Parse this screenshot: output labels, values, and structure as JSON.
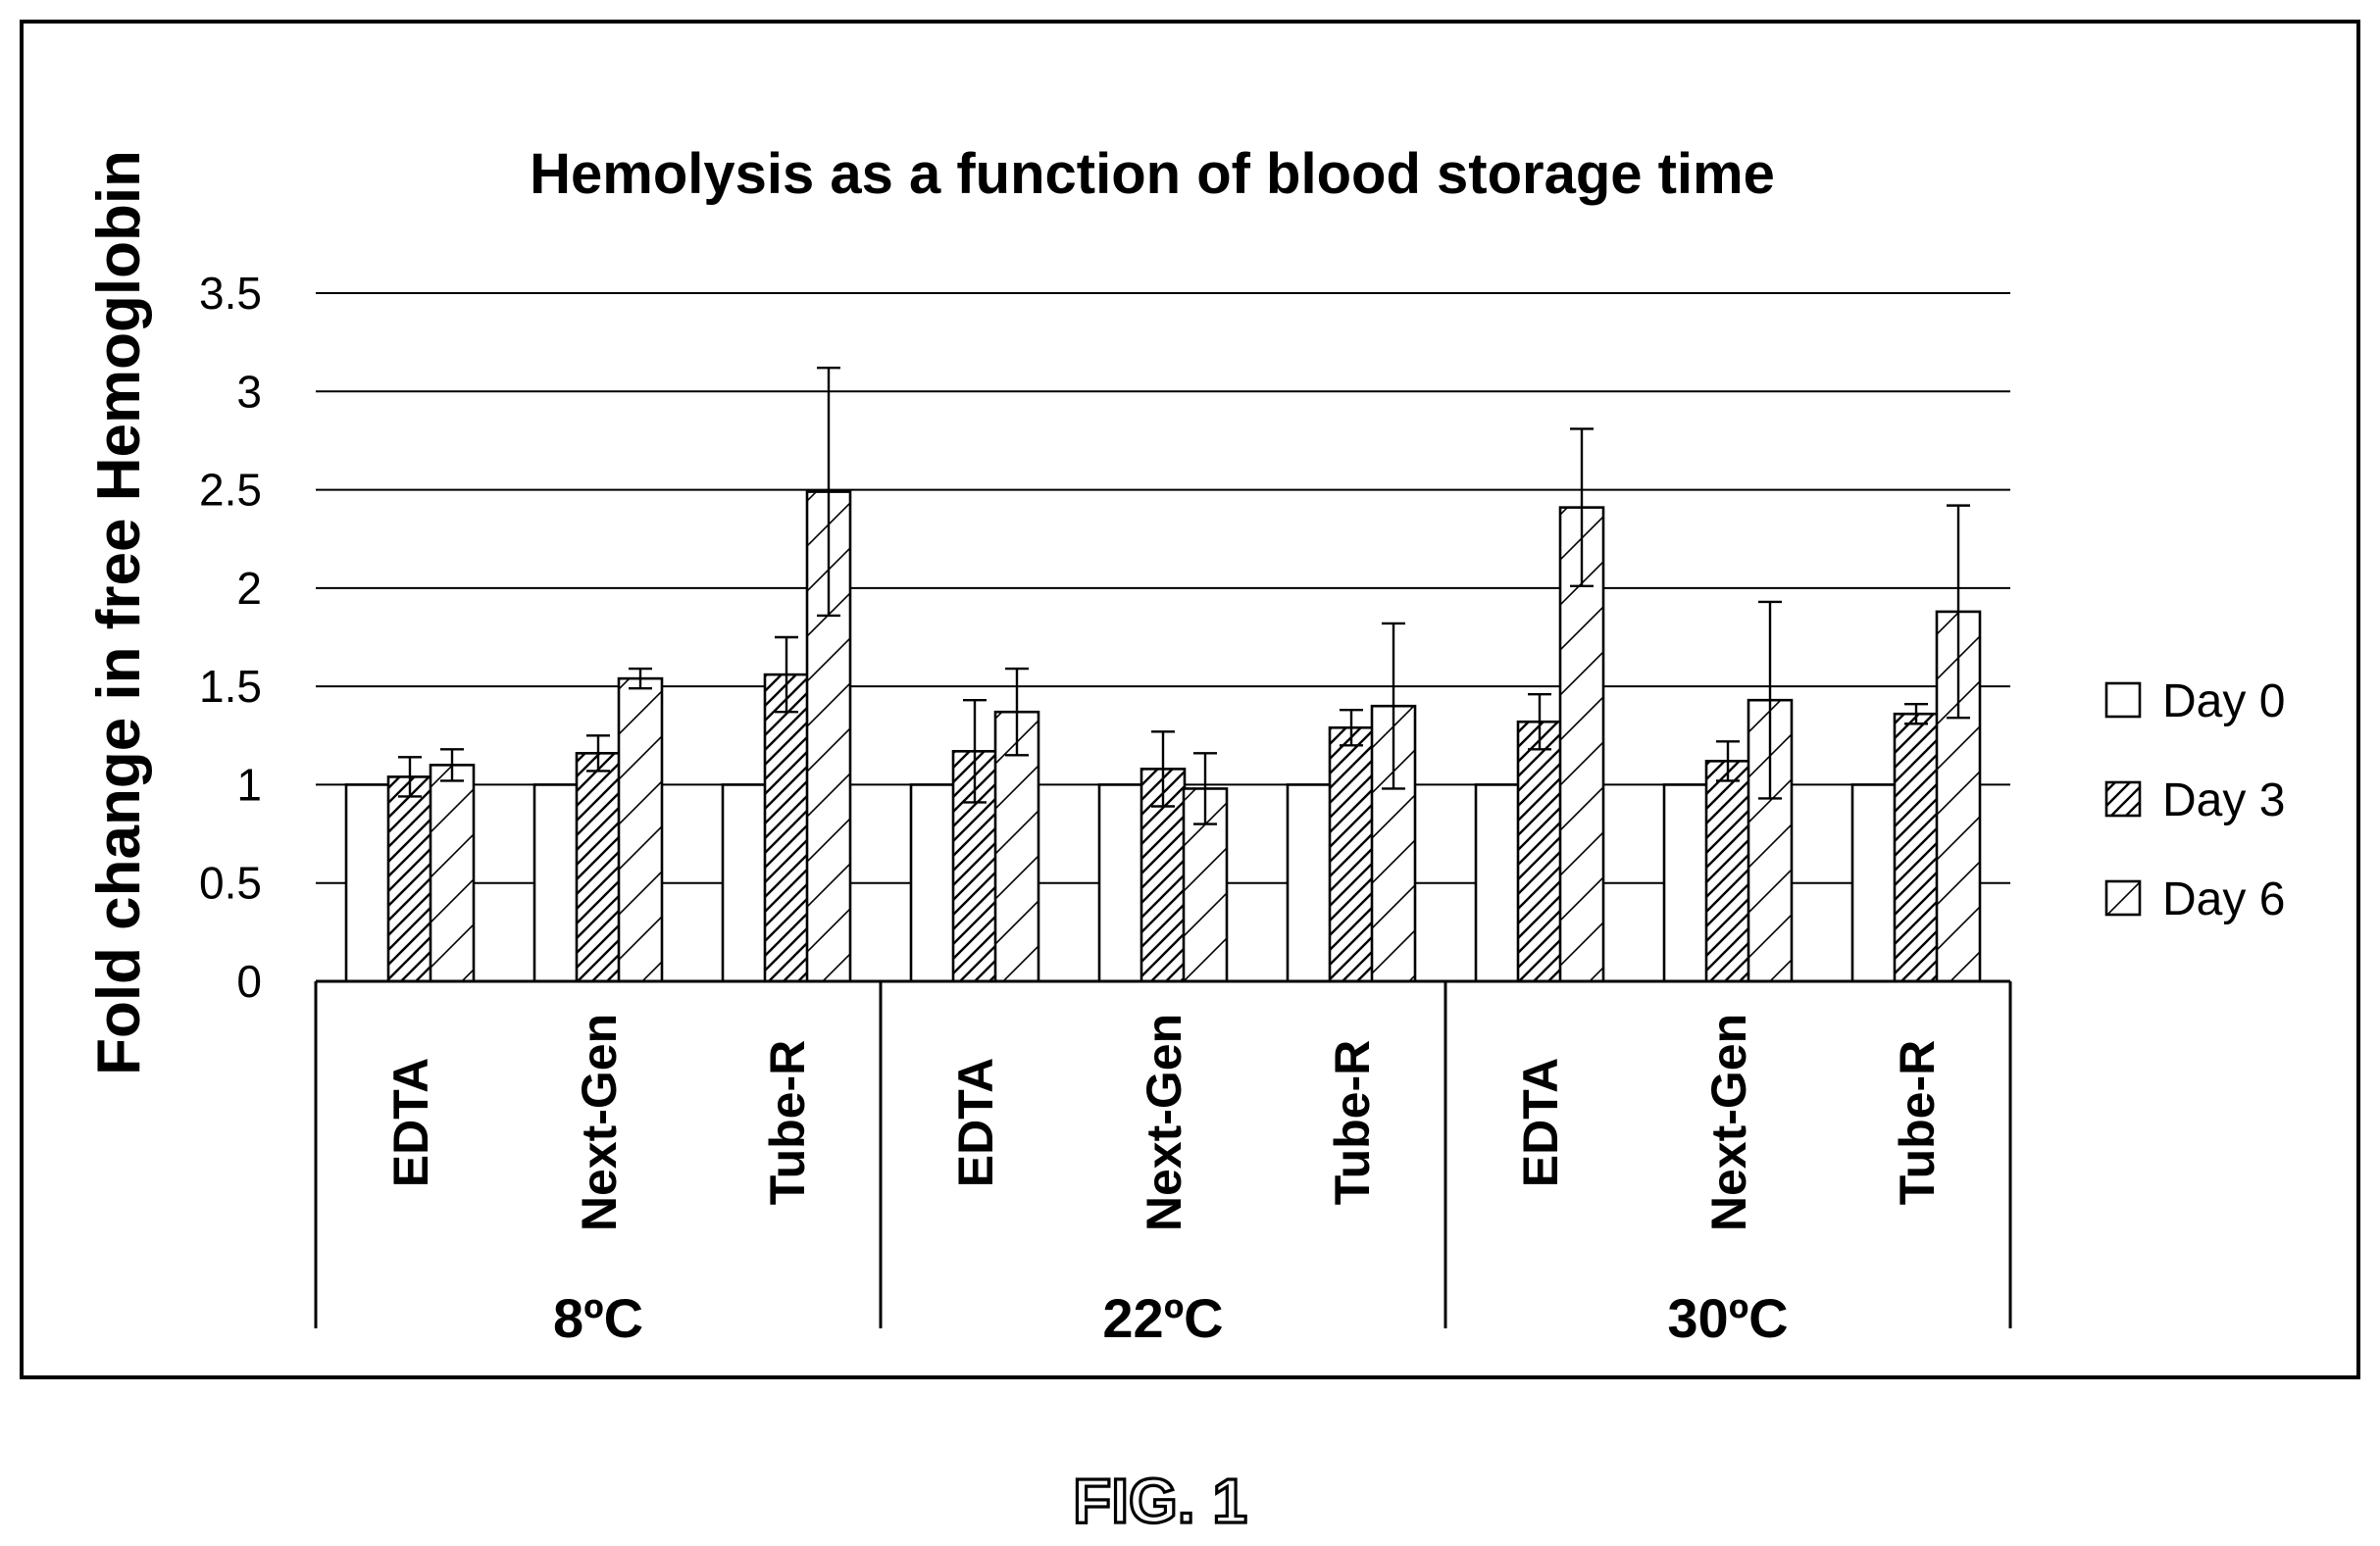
{
  "figure_label": "FIG. 1",
  "chart_data": {
    "type": "bar",
    "title": "Hemolysis as a function of blood storage time",
    "ylabel": "Fold change in free Hemoglobin",
    "ylim": [
      0,
      3.5
    ],
    "yticks": [
      "0",
      "0.5",
      "1",
      "1.5",
      "2",
      "2.5",
      "3",
      "3.5"
    ],
    "grid": true,
    "legend_position": "right",
    "groups": [
      {
        "label": "8ºC",
        "categories": [
          "EDTA",
          "Next-Gen",
          "Tube-R"
        ]
      },
      {
        "label": "22ºC",
        "categories": [
          "EDTA",
          "Next-Gen",
          "Tube-R"
        ]
      },
      {
        "label": "30ºC",
        "categories": [
          "EDTA",
          "Next-Gen",
          "Tube-R"
        ]
      }
    ],
    "series": [
      {
        "name": "Day 0",
        "pattern": "none",
        "values": [
          1,
          1,
          1,
          1,
          1,
          1,
          1,
          1,
          1
        ],
        "errors": [
          0,
          0,
          0,
          0,
          0,
          0,
          0,
          0,
          0
        ]
      },
      {
        "name": "Day 3",
        "pattern": "dense-hatch",
        "values": [
          1.04,
          1.16,
          1.56,
          1.17,
          1.08,
          1.29,
          1.32,
          1.12,
          1.36
        ],
        "errors": [
          0.1,
          0.09,
          0.19,
          0.26,
          0.19,
          0.09,
          0.14,
          0.1,
          0.05
        ]
      },
      {
        "name": "Day 6",
        "pattern": "sparse-hatch",
        "values": [
          1.1,
          1.54,
          2.49,
          1.37,
          0.98,
          1.4,
          2.41,
          1.43,
          1.88
        ],
        "errors": [
          0.08,
          0.05,
          0.63,
          0.22,
          0.18,
          0.42,
          0.4,
          0.5,
          0.54
        ]
      }
    ]
  }
}
